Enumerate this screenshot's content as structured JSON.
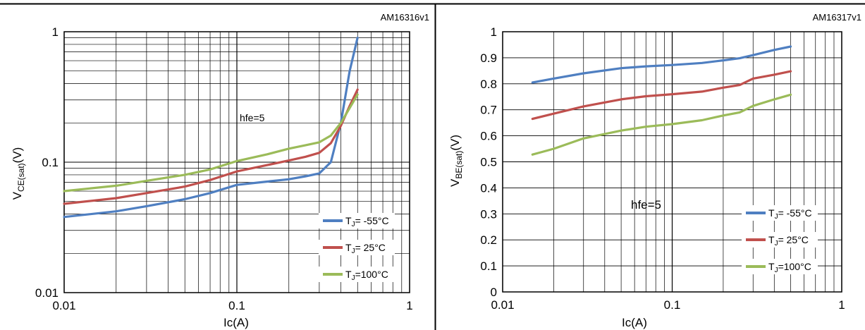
{
  "colors": {
    "series_blue": "#4f7fc1",
    "series_red": "#c0504d",
    "series_green": "#9bbb59",
    "grid": "#000000",
    "frame": "#000000"
  },
  "chart_data": [
    {
      "type": "line",
      "code": "AM16316v1",
      "annotation": "hfe=5",
      "xlabel": "Ic(A)",
      "ylabel": {
        "main": "V",
        "sub": "CE(sat)",
        "unit": "(V)"
      },
      "xscale": "log",
      "yscale": "log",
      "xlim": [
        0.01,
        1
      ],
      "ylim": [
        0.01,
        1
      ],
      "xticks": [
        {
          "v": 0.01,
          "label": "0.01"
        },
        {
          "v": 0.1,
          "label": "0.1"
        },
        {
          "v": 1,
          "label": "1"
        }
      ],
      "yticks": [
        {
          "v": 0.01,
          "label": "0.01"
        },
        {
          "v": 0.1,
          "label": "0.1"
        },
        {
          "v": 1,
          "label": "1"
        }
      ],
      "grid": true,
      "legend_position": "bottom-right",
      "series": [
        {
          "name": "T",
          "name_sub": "J",
          "name_rest": "= -55°C",
          "color": "#4f7fc1",
          "points": [
            [
              0.01,
              0.038
            ],
            [
              0.02,
              0.042
            ],
            [
              0.03,
              0.046
            ],
            [
              0.05,
              0.052
            ],
            [
              0.07,
              0.058
            ],
            [
              0.1,
              0.067
            ],
            [
              0.15,
              0.071
            ],
            [
              0.2,
              0.074
            ],
            [
              0.25,
              0.078
            ],
            [
              0.3,
              0.082
            ],
            [
              0.35,
              0.1
            ],
            [
              0.4,
              0.2
            ],
            [
              0.45,
              0.5
            ],
            [
              0.5,
              0.9
            ]
          ]
        },
        {
          "name": "T",
          "name_sub": "J",
          "name_rest": "= 25°C",
          "color": "#c0504d",
          "points": [
            [
              0.01,
              0.048
            ],
            [
              0.02,
              0.053
            ],
            [
              0.03,
              0.058
            ],
            [
              0.05,
              0.065
            ],
            [
              0.07,
              0.073
            ],
            [
              0.1,
              0.085
            ],
            [
              0.15,
              0.095
            ],
            [
              0.2,
              0.103
            ],
            [
              0.25,
              0.11
            ],
            [
              0.3,
              0.118
            ],
            [
              0.35,
              0.14
            ],
            [
              0.4,
              0.19
            ],
            [
              0.45,
              0.27
            ],
            [
              0.5,
              0.36
            ]
          ]
        },
        {
          "name": "T",
          "name_sub": "J",
          "name_rest": "=100°C",
          "color": "#9bbb59",
          "points": [
            [
              0.01,
              0.06
            ],
            [
              0.02,
              0.066
            ],
            [
              0.03,
              0.072
            ],
            [
              0.05,
              0.08
            ],
            [
              0.07,
              0.088
            ],
            [
              0.1,
              0.102
            ],
            [
              0.15,
              0.115
            ],
            [
              0.2,
              0.127
            ],
            [
              0.25,
              0.135
            ],
            [
              0.3,
              0.142
            ],
            [
              0.35,
              0.16
            ],
            [
              0.4,
              0.2
            ],
            [
              0.45,
              0.26
            ],
            [
              0.5,
              0.33
            ]
          ]
        }
      ]
    },
    {
      "type": "line",
      "code": "AM16317v1",
      "annotation": "hfe=5",
      "xlabel": "Ic(A)",
      "ylabel": {
        "main": "V",
        "sub": "BE(sat)",
        "unit": "(V)"
      },
      "xscale": "log",
      "yscale": "linear",
      "xlim": [
        0.01,
        1
      ],
      "ylim": [
        0,
        1
      ],
      "xticks": [
        {
          "v": 0.01,
          "label": "0.01"
        },
        {
          "v": 0.1,
          "label": "0.1"
        },
        {
          "v": 1,
          "label": "1"
        }
      ],
      "yticks": [
        {
          "v": 0,
          "label": "0"
        },
        {
          "v": 0.1,
          "label": "0.1"
        },
        {
          "v": 0.2,
          "label": "0.2"
        },
        {
          "v": 0.3,
          "label": "0.3"
        },
        {
          "v": 0.4,
          "label": "0.4"
        },
        {
          "v": 0.5,
          "label": "0.5"
        },
        {
          "v": 0.6,
          "label": "0.6"
        },
        {
          "v": 0.7,
          "label": "0.7"
        },
        {
          "v": 0.8,
          "label": "0.8"
        },
        {
          "v": 0.9,
          "label": "0.9"
        },
        {
          "v": 1,
          "label": "1"
        }
      ],
      "grid": true,
      "legend_position": "bottom-right",
      "series": [
        {
          "name": "T",
          "name_sub": "J",
          "name_rest": "= -55°C",
          "color": "#4f7fc1",
          "points": [
            [
              0.015,
              0.805
            ],
            [
              0.02,
              0.82
            ],
            [
              0.03,
              0.84
            ],
            [
              0.05,
              0.86
            ],
            [
              0.07,
              0.867
            ],
            [
              0.1,
              0.872
            ],
            [
              0.15,
              0.88
            ],
            [
              0.2,
              0.89
            ],
            [
              0.25,
              0.898
            ],
            [
              0.3,
              0.91
            ],
            [
              0.4,
              0.93
            ],
            [
              0.5,
              0.943
            ]
          ]
        },
        {
          "name": "T",
          "name_sub": "J",
          "name_rest": "= 25°C",
          "color": "#c0504d",
          "points": [
            [
              0.015,
              0.665
            ],
            [
              0.02,
              0.685
            ],
            [
              0.03,
              0.713
            ],
            [
              0.05,
              0.74
            ],
            [
              0.07,
              0.752
            ],
            [
              0.1,
              0.76
            ],
            [
              0.15,
              0.77
            ],
            [
              0.2,
              0.785
            ],
            [
              0.25,
              0.795
            ],
            [
              0.3,
              0.82
            ],
            [
              0.4,
              0.835
            ],
            [
              0.5,
              0.848
            ]
          ]
        },
        {
          "name": "T",
          "name_sub": "J",
          "name_rest": "=100°C",
          "color": "#9bbb59",
          "points": [
            [
              0.015,
              0.528
            ],
            [
              0.02,
              0.55
            ],
            [
              0.03,
              0.59
            ],
            [
              0.05,
              0.62
            ],
            [
              0.07,
              0.635
            ],
            [
              0.1,
              0.645
            ],
            [
              0.15,
              0.66
            ],
            [
              0.2,
              0.678
            ],
            [
              0.25,
              0.69
            ],
            [
              0.3,
              0.715
            ],
            [
              0.4,
              0.74
            ],
            [
              0.5,
              0.758
            ]
          ]
        }
      ]
    }
  ]
}
